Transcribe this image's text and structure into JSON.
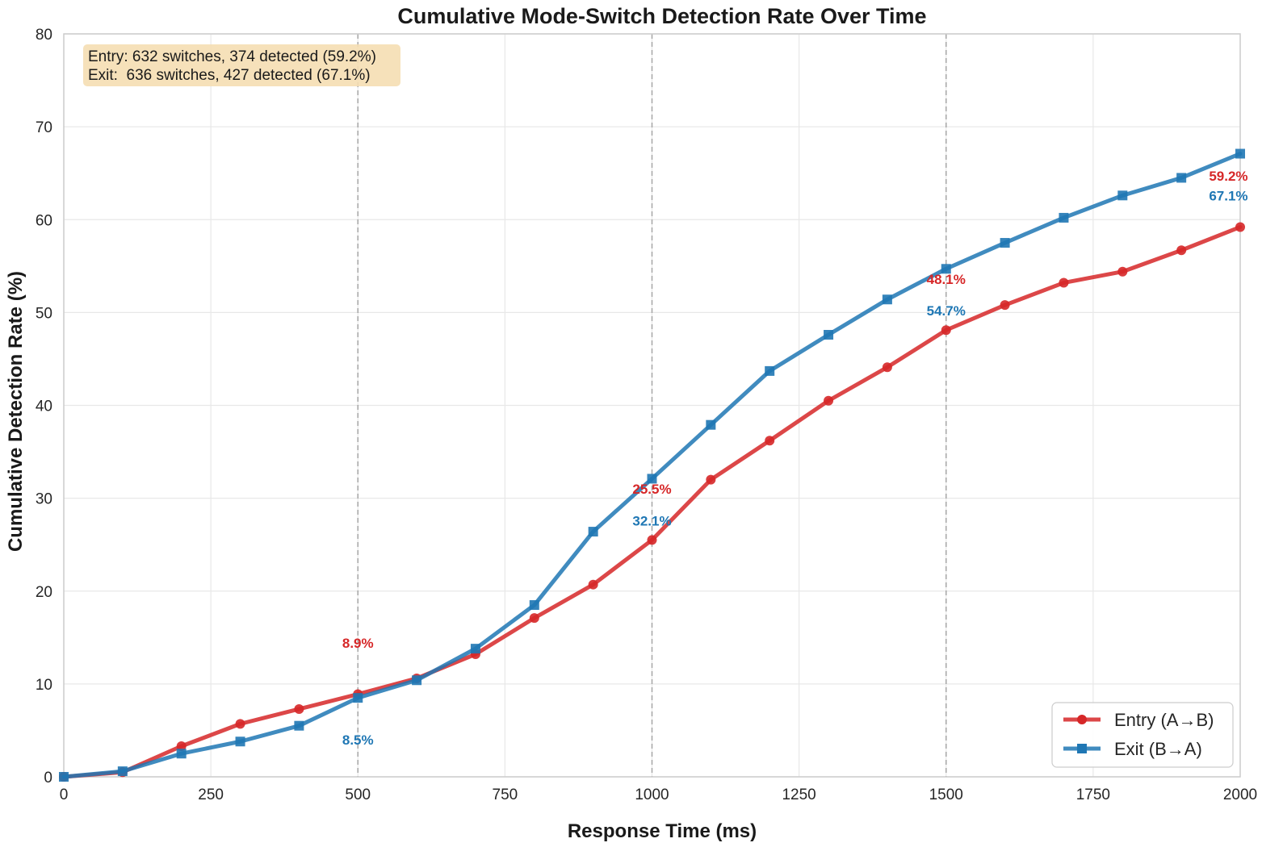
{
  "chart_data": {
    "type": "line",
    "title": "Cumulative Mode-Switch Detection Rate Over Time",
    "xlabel": "Response Time (ms)",
    "ylabel": "Cumulative Detection Rate (%)",
    "xlim": [
      0,
      2000
    ],
    "ylim": [
      0,
      80
    ],
    "xticks": [
      0,
      250,
      500,
      750,
      1000,
      1250,
      1500,
      1750,
      2000
    ],
    "yticks": [
      0,
      10,
      20,
      30,
      40,
      50,
      60,
      70,
      80
    ],
    "grid": true,
    "reference_lines_x": [
      500,
      1000,
      1500
    ],
    "x": [
      0,
      100,
      200,
      300,
      400,
      500,
      600,
      700,
      800,
      900,
      1000,
      1100,
      1200,
      1300,
      1400,
      1500,
      1600,
      1700,
      1800,
      1900,
      2000
    ],
    "series": [
      {
        "name": "Entry (A→B)",
        "color": "#d62728",
        "marker": "circle",
        "values": [
          0,
          0.5,
          3.3,
          5.7,
          7.3,
          8.9,
          10.6,
          13.2,
          17.1,
          20.7,
          25.5,
          32.0,
          36.2,
          40.5,
          44.1,
          48.1,
          50.8,
          53.2,
          54.4,
          56.7,
          59.2
        ]
      },
      {
        "name": "Exit (B→A)",
        "color": "#1f77b4",
        "marker": "square",
        "values": [
          0,
          0.6,
          2.5,
          3.8,
          5.5,
          8.5,
          10.4,
          13.8,
          18.5,
          26.4,
          32.1,
          37.9,
          43.7,
          47.6,
          51.4,
          54.7,
          57.5,
          60.2,
          62.6,
          64.5,
          67.1
        ]
      }
    ],
    "annotations": [
      {
        "text": "8.9%",
        "series": 0,
        "x": 500,
        "y": 14.4
      },
      {
        "text": "8.5%",
        "series": 1,
        "x": 500,
        "y": 4.0
      },
      {
        "text": "25.5%",
        "series": 0,
        "x": 1000,
        "y": 31.0
      },
      {
        "text": "32.1%",
        "series": 1,
        "x": 1000,
        "y": 27.6
      },
      {
        "text": "48.1%",
        "series": 0,
        "x": 1500,
        "y": 53.6
      },
      {
        "text": "54.7%",
        "series": 1,
        "x": 1500,
        "y": 50.2
      },
      {
        "text": "59.2%",
        "series": 0,
        "x": 1980,
        "y": 64.7
      },
      {
        "text": "67.1%",
        "series": 1,
        "x": 1980,
        "y": 62.6
      }
    ],
    "info_box": [
      "Entry: 632 switches, 374 detected (59.2%)",
      "Exit:  636 switches, 427 detected (67.1%)"
    ],
    "info_box_color": "#f5deb3",
    "legend": {
      "position": "bottom-right",
      "entries": [
        "Entry (A→B)",
        "Exit (B→A)"
      ]
    }
  }
}
